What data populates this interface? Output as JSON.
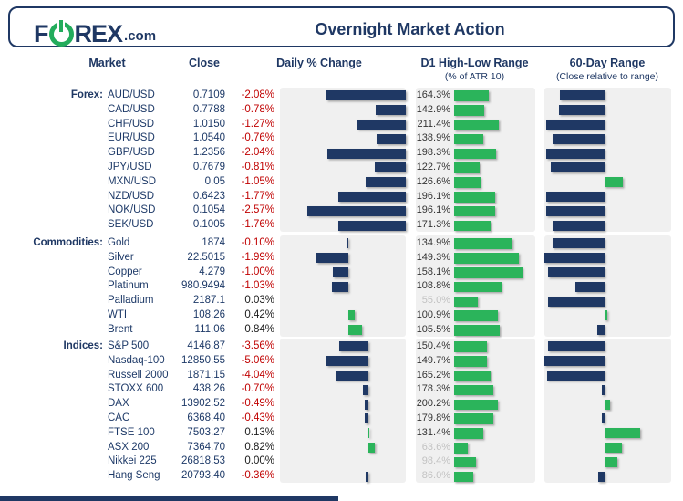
{
  "header": {
    "logo": {
      "f": "F",
      "rex": "REX",
      "com": ".com"
    },
    "title": "Overnight Market Action"
  },
  "columns": {
    "market": "Market",
    "close": "Close",
    "daily": "Daily % Change",
    "d1": "D1 High-Low Range",
    "d1_sub": "(% of ATR 10)",
    "range60": "60-Day Range",
    "range60_sub": "(Close relative to range)"
  },
  "colors": {
    "navy": "#1F3864",
    "green": "#2BB45B",
    "red": "#C00000",
    "dim_label": "#C2C2C2",
    "panel": "#F0F0F0"
  },
  "chart_data": {
    "type": "table",
    "note": "databars: daily % change (navy neg / green pos), D1 high-low range as % of ATR10 (green), 60-day range close position relative to midpoint (navy below / green above)",
    "sections": [
      {
        "label": "Forex:",
        "rows": [
          {
            "market": "AUD/USD",
            "close": "0.7109",
            "daily_label": "-2.08%",
            "daily_val": -2.08,
            "d1_label": "164.3%",
            "d1_val": 164.3,
            "d1_dim": false,
            "range60_frac": -0.74
          },
          {
            "market": "CAD/USD",
            "close": "0.7788",
            "daily_label": "-0.78%",
            "daily_val": -0.78,
            "d1_label": "142.9%",
            "d1_val": 142.9,
            "d1_dim": false,
            "range60_frac": -0.76
          },
          {
            "market": "CHF/USD",
            "close": "1.0150",
            "daily_label": "-1.27%",
            "daily_val": -1.27,
            "d1_label": "211.4%",
            "d1_val": 211.4,
            "d1_dim": false,
            "range60_frac": -0.97
          },
          {
            "market": "EUR/USD",
            "close": "1.0540",
            "daily_label": "-0.76%",
            "daily_val": -0.76,
            "d1_label": "138.9%",
            "d1_val": 138.9,
            "d1_dim": false,
            "range60_frac": -0.86
          },
          {
            "market": "GBP/USD",
            "close": "1.2356",
            "daily_label": "-2.04%",
            "daily_val": -2.04,
            "d1_label": "198.3%",
            "d1_val": 198.3,
            "d1_dim": false,
            "range60_frac": -0.97
          },
          {
            "market": "JPY/USD",
            "close": "0.7679",
            "daily_label": "-0.81%",
            "daily_val": -0.81,
            "d1_label": "122.7%",
            "d1_val": 122.7,
            "d1_dim": false,
            "range60_frac": -0.9
          },
          {
            "market": "MXN/USD",
            "close": "0.05",
            "daily_label": "-1.05%",
            "daily_val": -1.05,
            "d1_label": "126.6%",
            "d1_val": 126.6,
            "d1_dim": false,
            "range60_frac": 0.29
          },
          {
            "market": "NZD/USD",
            "close": "0.6423",
            "daily_label": "-1.77%",
            "daily_val": -1.77,
            "d1_label": "196.1%",
            "d1_val": 196.1,
            "d1_dim": false,
            "range60_frac": -0.97
          },
          {
            "market": "NOK/USD",
            "close": "0.1054",
            "daily_label": "-2.57%",
            "daily_val": -2.57,
            "d1_label": "196.1%",
            "d1_val": 196.1,
            "d1_dim": false,
            "range60_frac": -0.97
          },
          {
            "market": "SEK/USD",
            "close": "0.1005",
            "daily_label": "-1.76%",
            "daily_val": -1.76,
            "d1_label": "171.3%",
            "d1_val": 171.3,
            "d1_dim": false,
            "range60_frac": -0.86
          }
        ]
      },
      {
        "label": "Commodities:",
        "rows": [
          {
            "market": "Gold",
            "close": "1874",
            "daily_label": "-0.10%",
            "daily_val": -0.1,
            "d1_label": "134.9%",
            "d1_val": 134.9,
            "d1_dim": false,
            "range60_frac": -0.87
          },
          {
            "market": "Silver",
            "close": "22.5015",
            "daily_label": "-1.99%",
            "daily_val": -1.99,
            "d1_label": "149.3%",
            "d1_val": 149.3,
            "d1_dim": false,
            "range60_frac": -1.0
          },
          {
            "market": "Copper",
            "close": "4.279",
            "daily_label": "-1.00%",
            "daily_val": -1.0,
            "d1_label": "158.1%",
            "d1_val": 158.1,
            "d1_dim": false,
            "range60_frac": -0.94
          },
          {
            "market": "Platinum",
            "close": "980.9494",
            "daily_label": "-1.03%",
            "daily_val": -1.03,
            "d1_label": "108.8%",
            "d1_val": 108.8,
            "d1_dim": false,
            "range60_frac": -0.49
          },
          {
            "market": "Palladium",
            "close": "2187.1",
            "daily_label": "0.03%",
            "daily_val": 0.03,
            "d1_label": "55.0%",
            "d1_val": 55.0,
            "d1_dim": true,
            "range60_frac": -0.94
          },
          {
            "market": "WTI",
            "close": "108.26",
            "daily_label": "0.42%",
            "daily_val": 0.42,
            "d1_label": "100.9%",
            "d1_val": 100.9,
            "d1_dim": false,
            "range60_frac": 0.04
          },
          {
            "market": "Brent",
            "close": "111.06",
            "daily_label": "0.84%",
            "daily_val": 0.84,
            "d1_label": "105.5%",
            "d1_val": 105.5,
            "d1_dim": false,
            "range60_frac": -0.12
          }
        ]
      },
      {
        "label": "Indices:",
        "rows": [
          {
            "market": "S&P 500",
            "close": "4146.87",
            "daily_label": "-3.56%",
            "daily_val": -3.56,
            "d1_label": "150.4%",
            "d1_val": 150.4,
            "d1_dim": false,
            "range60_frac": -0.94
          },
          {
            "market": "Nasdaq-100",
            "close": "12850.55",
            "daily_label": "-5.06%",
            "daily_val": -5.06,
            "d1_label": "149.7%",
            "d1_val": 149.7,
            "d1_dim": false,
            "range60_frac": -1.0
          },
          {
            "market": "Russell 2000",
            "close": "1871.15",
            "daily_label": "-4.04%",
            "daily_val": -4.04,
            "d1_label": "165.2%",
            "d1_val": 165.2,
            "d1_dim": false,
            "range60_frac": -0.95
          },
          {
            "market": "STOXX 600",
            "close": "438.26",
            "daily_label": "-0.70%",
            "daily_val": -0.7,
            "d1_label": "178.3%",
            "d1_val": 178.3,
            "d1_dim": false,
            "range60_frac": -0.04
          },
          {
            "market": "DAX",
            "close": "13902.52",
            "daily_label": "-0.49%",
            "daily_val": -0.49,
            "d1_label": "200.2%",
            "d1_val": 200.2,
            "d1_dim": false,
            "range60_frac": 0.09
          },
          {
            "market": "CAC",
            "close": "6368.40",
            "daily_label": "-0.43%",
            "daily_val": -0.43,
            "d1_label": "179.8%",
            "d1_val": 179.8,
            "d1_dim": false,
            "range60_frac": -0.04
          },
          {
            "market": "FTSE 100",
            "close": "7503.27",
            "daily_label": "0.13%",
            "daily_val": 0.13,
            "d1_label": "131.4%",
            "d1_val": 131.4,
            "d1_dim": false,
            "range60_frac": 0.56
          },
          {
            "market": "ASX 200",
            "close": "7364.70",
            "daily_label": "0.82%",
            "daily_val": 0.82,
            "d1_label": "63.6%",
            "d1_val": 63.6,
            "d1_dim": true,
            "range60_frac": 0.27
          },
          {
            "market": "Nikkei 225",
            "close": "26818.53",
            "daily_label": "0.00%",
            "daily_val": 0.0,
            "d1_label": "98.4%",
            "d1_val": 98.4,
            "d1_dim": true,
            "range60_frac": 0.2
          },
          {
            "market": "Hang Seng",
            "close": "20793.40",
            "daily_label": "-0.36%",
            "daily_val": -0.36,
            "d1_label": "86.0%",
            "d1_val": 86.0,
            "d1_dim": true,
            "range60_frac": -0.11
          }
        ]
      }
    ]
  }
}
